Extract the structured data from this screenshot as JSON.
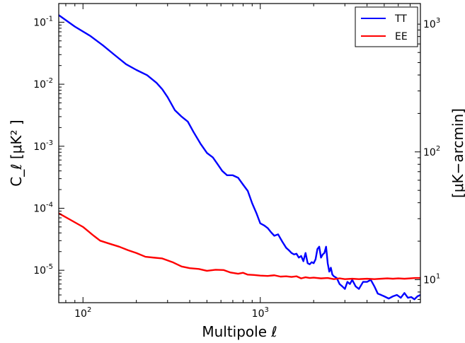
{
  "chart_data": {
    "type": "line",
    "xlabel": "Multipole ℓ",
    "ylabel_left": "C_ℓ [μK² ]",
    "ylabel_right": "[μK−arcmin]",
    "xscale": "log",
    "yscale_left": "log",
    "yscale_right": "log",
    "xlim": [
      73,
      8000
    ],
    "ylim_left": [
      3e-06,
      0.2
    ],
    "ylim_right": [
      6.6,
      1450
    ],
    "x_ticks": [
      {
        "value": 100,
        "base": "10",
        "exp": "2"
      },
      {
        "value": 1000,
        "base": "10",
        "exp": "3"
      }
    ],
    "y_ticks_left": [
      {
        "value": 0.1,
        "base": "10",
        "exp": "-1"
      },
      {
        "value": 0.01,
        "base": "10",
        "exp": "-2"
      },
      {
        "value": 0.001,
        "base": "10",
        "exp": "-3"
      },
      {
        "value": 0.0001,
        "base": "10",
        "exp": "-4"
      },
      {
        "value": 1e-05,
        "base": "10",
        "exp": "-5"
      }
    ],
    "y_ticks_right": [
      {
        "value": 10,
        "base": "10",
        "exp": "1"
      },
      {
        "value": 100,
        "base": "10",
        "exp": "2"
      },
      {
        "value": 1000,
        "base": "10",
        "exp": "3"
      }
    ],
    "legend_position": "top-right",
    "grid": false,
    "series": [
      {
        "name": "TT",
        "color": "#0000ff",
        "points": [
          [
            73,
            0.13
          ],
          [
            90,
            0.085
          ],
          [
            110,
            0.06
          ],
          [
            130,
            0.042
          ],
          [
            150,
            0.03
          ],
          [
            175,
            0.021
          ],
          [
            200,
            0.017
          ],
          [
            230,
            0.014
          ],
          [
            260,
            0.0105
          ],
          [
            280,
            0.0083
          ],
          [
            300,
            0.0062
          ],
          [
            330,
            0.0038
          ],
          [
            360,
            0.003
          ],
          [
            390,
            0.0025
          ],
          [
            420,
            0.0017
          ],
          [
            460,
            0.0011
          ],
          [
            500,
            0.00078
          ],
          [
            540,
            0.00066
          ],
          [
            570,
            0.00053
          ],
          [
            610,
            0.0004
          ],
          [
            650,
            0.00034
          ],
          [
            700,
            0.00034
          ],
          [
            750,
            0.00031
          ],
          [
            800,
            0.00024
          ],
          [
            850,
            0.00019
          ],
          [
            900,
            0.00012
          ],
          [
            950,
            8.4e-05
          ],
          [
            1000,
            5.7e-05
          ],
          [
            1050,
            5.3e-05
          ],
          [
            1100,
            4.8e-05
          ],
          [
            1150,
            4.1e-05
          ],
          [
            1200,
            3.6e-05
          ],
          [
            1260,
            3.8e-05
          ],
          [
            1330,
            2.9e-05
          ],
          [
            1400,
            2.3e-05
          ],
          [
            1450,
            2.1e-05
          ],
          [
            1500,
            1.9e-05
          ],
          [
            1550,
            1.8e-05
          ],
          [
            1600,
            1.85e-05
          ],
          [
            1650,
            1.6e-05
          ],
          [
            1700,
            1.7e-05
          ],
          [
            1750,
            1.4e-05
          ],
          [
            1800,
            1.9e-05
          ],
          [
            1850,
            1.3e-05
          ],
          [
            1900,
            1.25e-05
          ],
          [
            1950,
            1.35e-05
          ],
          [
            2000,
            1.3e-05
          ],
          [
            2050,
            1.5e-05
          ],
          [
            2100,
            2.2e-05
          ],
          [
            2150,
            2.4e-05
          ],
          [
            2200,
            1.6e-05
          ],
          [
            2250,
            1.8e-05
          ],
          [
            2300,
            1.9e-05
          ],
          [
            2350,
            2.4e-05
          ],
          [
            2400,
            1.3e-05
          ],
          [
            2450,
            9.5e-06
          ],
          [
            2500,
            1.1e-05
          ],
          [
            2550,
            8.5e-06
          ],
          [
            2600,
            8e-06
          ],
          [
            2700,
            7.5e-06
          ],
          [
            2800,
            6e-06
          ],
          [
            2900,
            5.5e-06
          ],
          [
            3000,
            5e-06
          ],
          [
            3100,
            6.5e-06
          ],
          [
            3200,
            6e-06
          ],
          [
            3300,
            7e-06
          ],
          [
            3450,
            5.5e-06
          ],
          [
            3600,
            5e-06
          ],
          [
            3800,
            6.5e-06
          ],
          [
            4000,
            6.5e-06
          ],
          [
            4200,
            7e-06
          ],
          [
            4400,
            5.5e-06
          ],
          [
            4600,
            4.2e-06
          ],
          [
            4800,
            4e-06
          ],
          [
            5000,
            3.8e-06
          ],
          [
            5300,
            3.5e-06
          ],
          [
            5600,
            3.8e-06
          ],
          [
            5900,
            4e-06
          ],
          [
            6200,
            3.6e-06
          ],
          [
            6500,
            4.3e-06
          ],
          [
            6800,
            3.6e-06
          ],
          [
            7100,
            3.7e-06
          ],
          [
            7400,
            3.4e-06
          ],
          [
            7700,
            3.8e-06
          ],
          [
            8000,
            4e-06
          ]
        ]
      },
      {
        "name": "EE",
        "color": "#ff0000",
        "points": [
          [
            73,
            8.3e-05
          ],
          [
            85,
            6.5e-05
          ],
          [
            100,
            5e-05
          ],
          [
            115,
            3.6e-05
          ],
          [
            125,
            3e-05
          ],
          [
            140,
            2.7e-05
          ],
          [
            160,
            2.4e-05
          ],
          [
            180,
            2.1e-05
          ],
          [
            200,
            1.9e-05
          ],
          [
            225,
            1.65e-05
          ],
          [
            250,
            1.6e-05
          ],
          [
            280,
            1.55e-05
          ],
          [
            320,
            1.35e-05
          ],
          [
            360,
            1.15e-05
          ],
          [
            400,
            1.08e-05
          ],
          [
            450,
            1.05e-05
          ],
          [
            500,
            9.8e-06
          ],
          [
            560,
            1.02e-05
          ],
          [
            620,
            1.01e-05
          ],
          [
            680,
            9.2e-06
          ],
          [
            750,
            8.8e-06
          ],
          [
            800,
            9.1e-06
          ],
          [
            850,
            8.5e-06
          ],
          [
            920,
            8.4e-06
          ],
          [
            1000,
            8.2e-06
          ],
          [
            1100,
            8.1e-06
          ],
          [
            1200,
            8.3e-06
          ],
          [
            1300,
            7.9e-06
          ],
          [
            1400,
            8e-06
          ],
          [
            1500,
            7.8e-06
          ],
          [
            1600,
            8e-06
          ],
          [
            1700,
            7.4e-06
          ],
          [
            1800,
            7.7e-06
          ],
          [
            1900,
            7.5e-06
          ],
          [
            2000,
            7.6e-06
          ],
          [
            2200,
            7.4e-06
          ],
          [
            2400,
            7.5e-06
          ],
          [
            2600,
            7.2e-06
          ],
          [
            2800,
            7.4e-06
          ],
          [
            3000,
            7.2e-06
          ],
          [
            3300,
            7.3e-06
          ],
          [
            3600,
            7.2e-06
          ],
          [
            4000,
            7.3e-06
          ],
          [
            4400,
            7.2e-06
          ],
          [
            4800,
            7.3e-06
          ],
          [
            5200,
            7.4e-06
          ],
          [
            5600,
            7.3e-06
          ],
          [
            6000,
            7.4e-06
          ],
          [
            6500,
            7.3e-06
          ],
          [
            7000,
            7.4e-06
          ],
          [
            7500,
            7.5e-06
          ],
          [
            8000,
            7.5e-06
          ]
        ]
      }
    ]
  }
}
